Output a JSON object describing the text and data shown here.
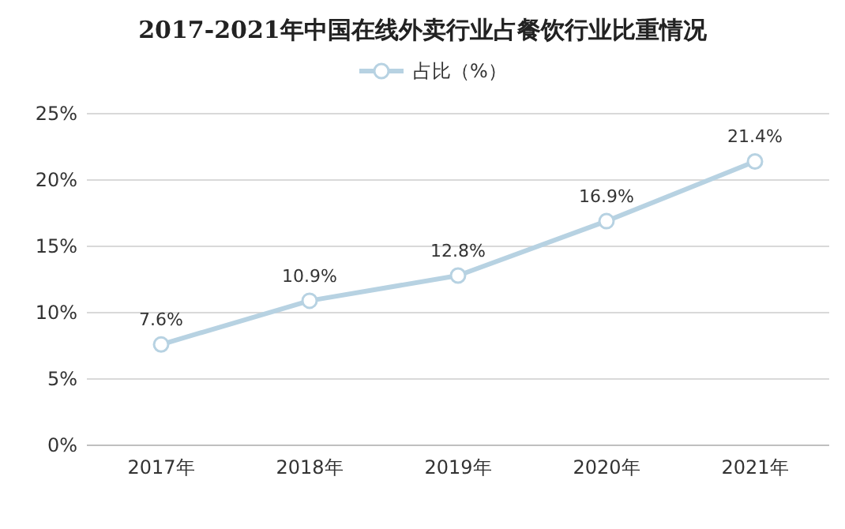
{
  "chart_data": {
    "type": "line",
    "title": "2017-2021年中国在线外卖行业占餐饮行业比重情况",
    "categories": [
      "2017年",
      "2018年",
      "2019年",
      "2020年",
      "2021年"
    ],
    "series": [
      {
        "name": "占比（%）",
        "color": "#b7d2e2",
        "values": [
          7.6,
          10.9,
          12.8,
          16.9,
          21.4
        ],
        "value_labels": [
          "7.6%",
          "10.9%",
          "12.8%",
          "16.9%",
          "21.4%"
        ]
      }
    ],
    "ylim": [
      0,
      25
    ],
    "yticks": [
      {
        "value": 0,
        "label": "0%"
      },
      {
        "value": 5,
        "label": "5%"
      },
      {
        "value": 10,
        "label": "10%"
      },
      {
        "value": 15,
        "label": "15%"
      },
      {
        "value": 20,
        "label": "20%"
      },
      {
        "value": 25,
        "label": "25%"
      }
    ],
    "grid": "y",
    "legend": "top",
    "marker": "circle",
    "line_style": "solid"
  }
}
